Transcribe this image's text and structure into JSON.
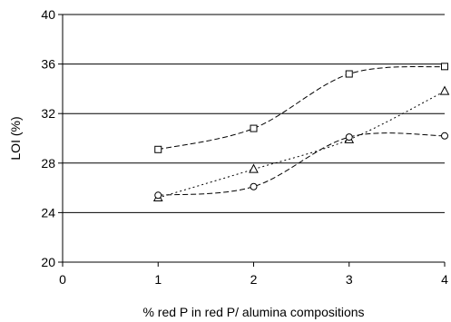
{
  "chart_data": {
    "type": "line",
    "xlabel": "% red P in red P/ alumina compositions",
    "ylabel": "LOI (%)",
    "xlim": [
      0,
      4
    ],
    "ylim": [
      20,
      40
    ],
    "xticks": [
      0,
      1,
      2,
      3,
      4
    ],
    "yticks": [
      20,
      24,
      28,
      32,
      36,
      40
    ],
    "x_tick_labels": [
      "0",
      "1",
      "2",
      "3",
      "4"
    ],
    "y_tick_labels": [
      "20",
      "24",
      "28",
      "32",
      "36",
      "40"
    ],
    "grid": "horizontal",
    "legend": "none",
    "x": [
      1,
      2,
      3,
      4
    ],
    "series": [
      {
        "marker": "square",
        "dash": "dashed",
        "values": [
          29.1,
          30.8,
          35.2,
          35.8
        ]
      },
      {
        "marker": "triangle",
        "dash": "dotted",
        "values": [
          25.2,
          27.5,
          29.9,
          33.8
        ]
      },
      {
        "marker": "circle",
        "dash": "dashed",
        "values": [
          25.4,
          26.1,
          30.1,
          30.2
        ]
      }
    ]
  }
}
